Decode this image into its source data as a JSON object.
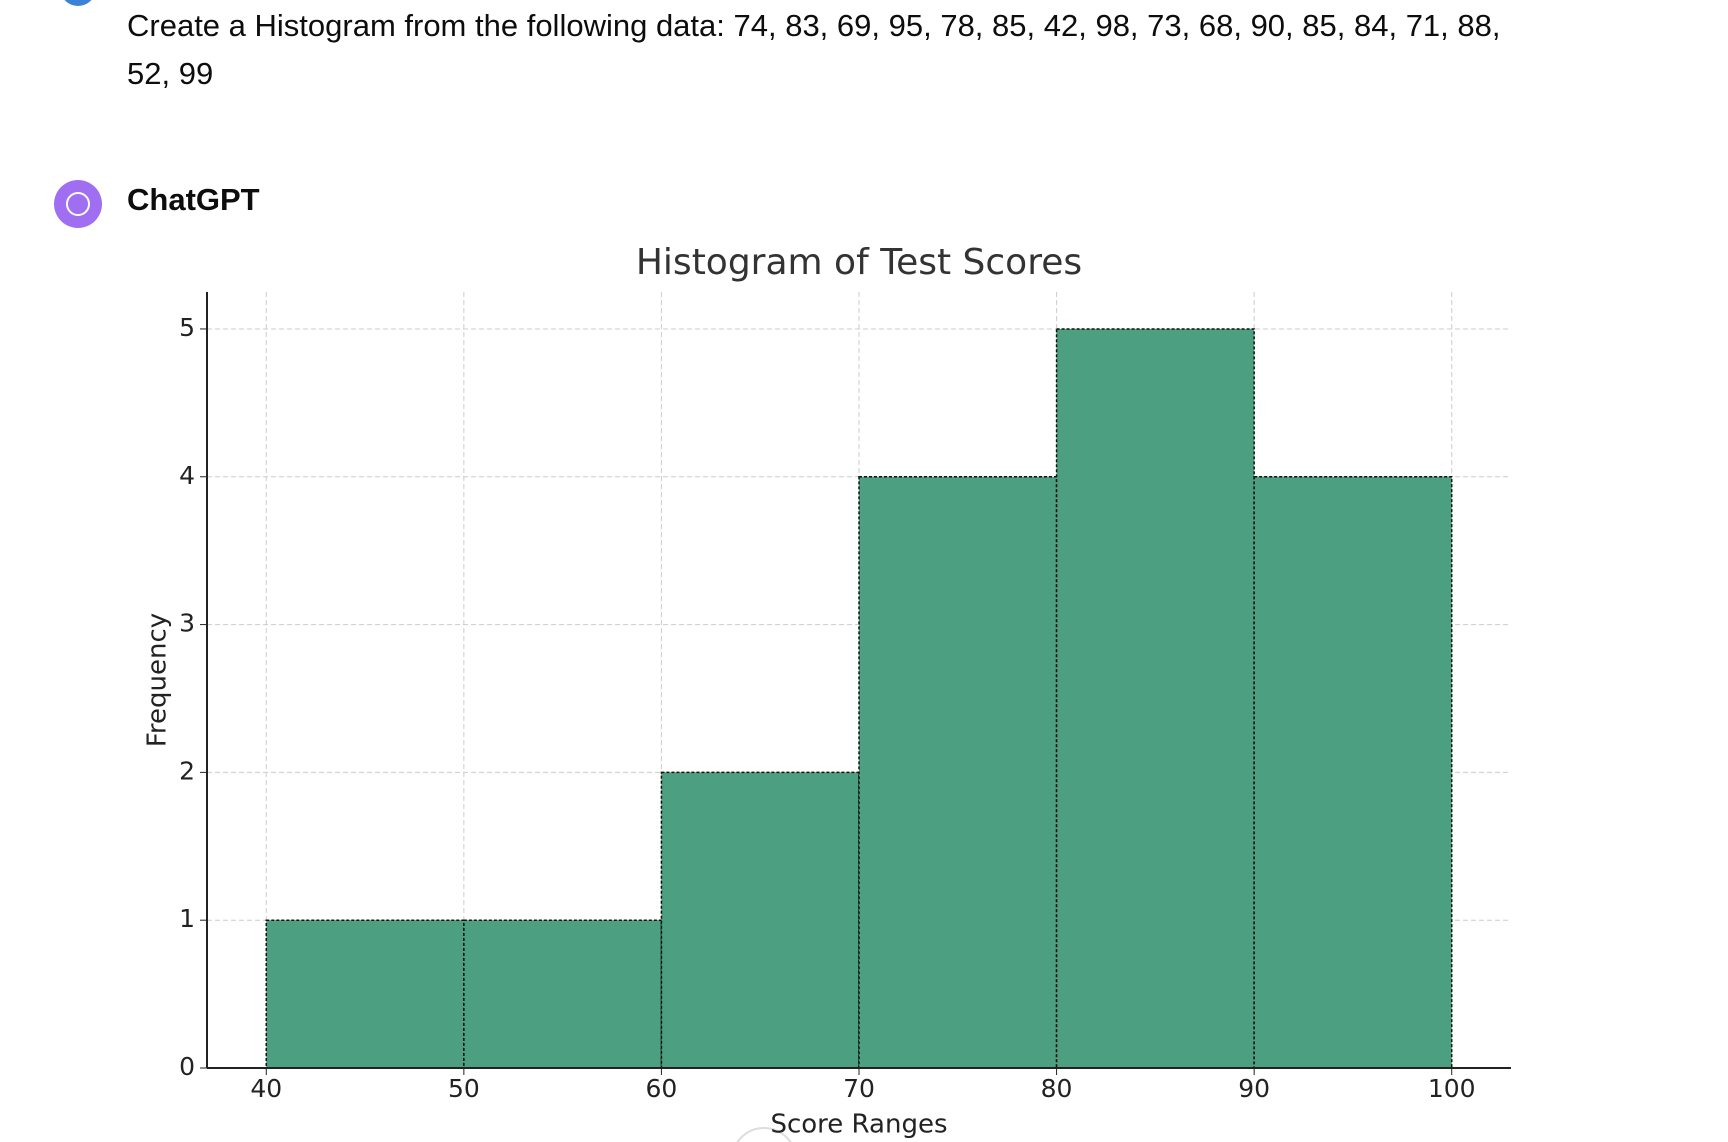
{
  "user_message": {
    "text": "Create a Histogram from the following data: 74, 83, 69, 95, 78, 85, 42, 98, 73, 68, 90, 85, 84, 71, 88, 52, 99"
  },
  "assistant": {
    "name": "ChatGPT"
  },
  "chart_data": {
    "type": "histogram",
    "title": "Histogram of Test Scores",
    "x_label": "Score Ranges",
    "y_label": "Frequency",
    "bins": [
      40,
      50,
      60,
      70,
      80,
      90,
      100
    ],
    "values": [
      1,
      1,
      2,
      4,
      5,
      4
    ],
    "color": "#4ca081",
    "xlim": [
      37,
      103
    ],
    "ylim": [
      0,
      5.25
    ],
    "xticks": [
      40,
      50,
      60,
      70,
      80,
      90,
      100
    ],
    "yticks": [
      0,
      1,
      2,
      3,
      4,
      5
    ],
    "grid": true
  }
}
